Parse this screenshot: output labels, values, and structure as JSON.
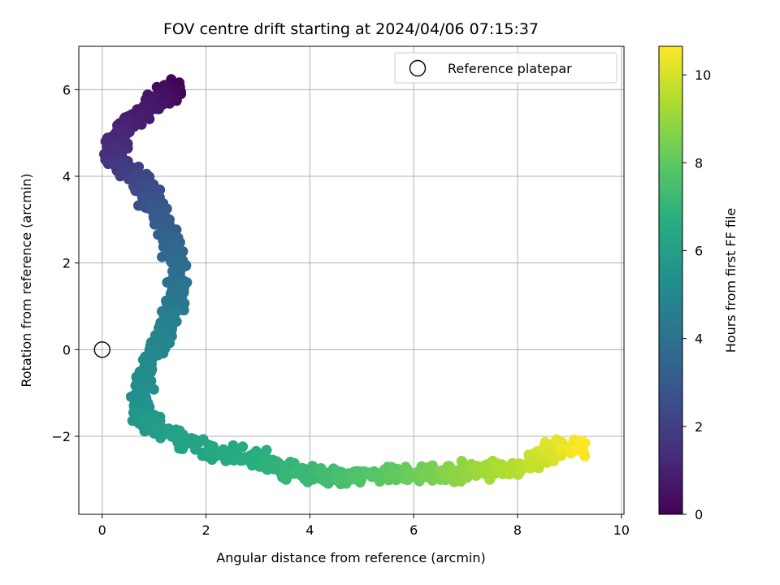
{
  "chart_data": {
    "type": "scatter",
    "title": "FOV centre drift starting at 2024/04/06 07:15:37",
    "xlabel": "Angular distance from reference (arcmin)",
    "ylabel": "Rotation from reference (arcmin)",
    "xlim": [
      -0.45,
      10.05
    ],
    "ylim": [
      -3.8,
      7.0
    ],
    "xticks": [
      0,
      2,
      4,
      6,
      8,
      10
    ],
    "yticks": [
      -2,
      0,
      2,
      4,
      6
    ],
    "grid": true,
    "legend": {
      "position": "top-right",
      "entries": [
        "Reference platepar"
      ]
    },
    "reference_point": {
      "x": 0,
      "y": 0
    },
    "colorbar": {
      "label": "Hours from first FF file",
      "range": [
        0,
        10.65
      ],
      "ticks": [
        0,
        2,
        4,
        6,
        8,
        10
      ],
      "colormap": "viridis"
    },
    "track": [
      {
        "t": 0.0,
        "x": 1.35,
        "y": 6.1
      },
      {
        "t": 0.3,
        "x": 1.3,
        "y": 5.9
      },
      {
        "t": 0.6,
        "x": 1.0,
        "y": 5.7
      },
      {
        "t": 0.9,
        "x": 0.6,
        "y": 5.3
      },
      {
        "t": 1.2,
        "x": 0.25,
        "y": 4.8
      },
      {
        "t": 1.6,
        "x": 0.25,
        "y": 4.35
      },
      {
        "t": 2.0,
        "x": 0.6,
        "y": 4.05
      },
      {
        "t": 2.4,
        "x": 0.85,
        "y": 3.7
      },
      {
        "t": 2.8,
        "x": 1.0,
        "y": 3.3
      },
      {
        "t": 3.2,
        "x": 1.25,
        "y": 2.8
      },
      {
        "t": 3.6,
        "x": 1.4,
        "y": 2.2
      },
      {
        "t": 4.0,
        "x": 1.45,
        "y": 1.5
      },
      {
        "t": 4.4,
        "x": 1.35,
        "y": 0.85
      },
      {
        "t": 4.8,
        "x": 1.1,
        "y": 0.25
      },
      {
        "t": 5.1,
        "x": 0.8,
        "y": -0.5
      },
      {
        "t": 5.5,
        "x": 0.75,
        "y": -1.5
      },
      {
        "t": 5.9,
        "x": 1.0,
        "y": -1.8
      },
      {
        "t": 6.3,
        "x": 2.0,
        "y": -2.3
      },
      {
        "t": 6.7,
        "x": 3.0,
        "y": -2.55
      },
      {
        "t": 7.1,
        "x": 3.8,
        "y": -2.85
      },
      {
        "t": 7.5,
        "x": 4.7,
        "y": -2.95
      },
      {
        "t": 8.0,
        "x": 5.6,
        "y": -2.85
      },
      {
        "t": 8.5,
        "x": 6.5,
        "y": -2.85
      },
      {
        "t": 9.0,
        "x": 7.2,
        "y": -2.8
      },
      {
        "t": 9.5,
        "x": 8.0,
        "y": -2.75
      },
      {
        "t": 10.0,
        "x": 8.6,
        "y": -2.35
      },
      {
        "t": 10.65,
        "x": 9.3,
        "y": -2.2
      }
    ],
    "points_per_segment": 45,
    "scatter_spread": {
      "x": 0.16,
      "y": 0.16
    }
  }
}
